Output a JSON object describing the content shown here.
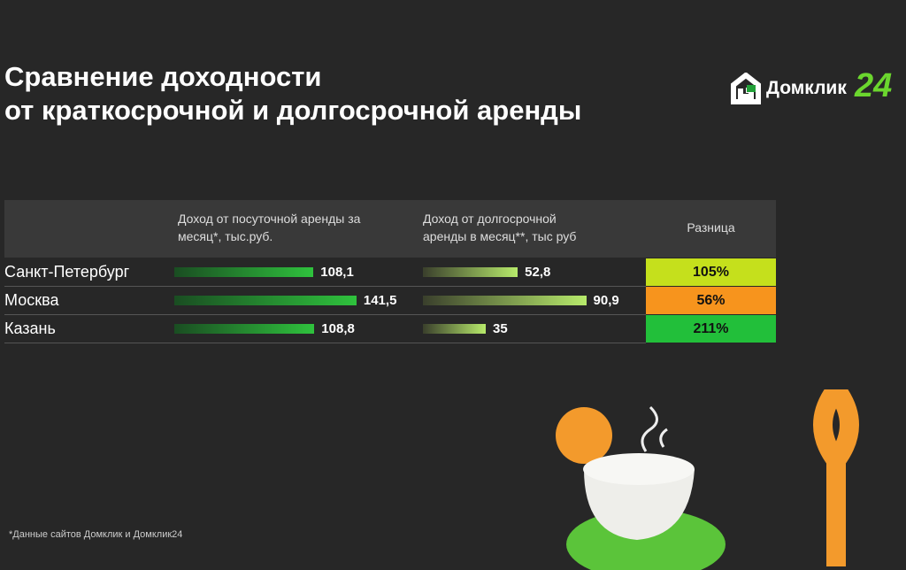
{
  "header": {
    "title_line1": "Сравнение доходности",
    "title_line2": "от краткосрочной и долгосрочной аренды",
    "logo": "Домклик",
    "logo_suffix": "24"
  },
  "table": {
    "columns": [
      "Доход от посуточной аренды за месяц*, тыс.руб.",
      "Доход от долгосрочной аренды в месяц**, тыс руб",
      "Разница"
    ],
    "rows": [
      {
        "city": "Санкт-Петербург",
        "short": {
          "value": 108.1,
          "label": "108,1"
        },
        "long": {
          "value": 52.8,
          "label": "52,8"
        },
        "diff": {
          "value": 105,
          "label": "105%"
        },
        "color": "#c5e01c"
      },
      {
        "city": "Москва",
        "short": {
          "value": 141.5,
          "label": "141,5"
        },
        "long": {
          "value": 90.9,
          "label": "90,9"
        },
        "diff": {
          "value": 56,
          "label": "56%"
        },
        "color": "#f7941d"
      },
      {
        "city": "Казань",
        "short": {
          "value": 108.8,
          "label": "108,8"
        },
        "long": {
          "value": 35,
          "label": "35"
        },
        "diff": {
          "value": 211,
          "label": "211%"
        },
        "color": "#22bf3a"
      }
    ]
  },
  "footnote": "*Данные сайтов Домклик и Домклик24"
}
